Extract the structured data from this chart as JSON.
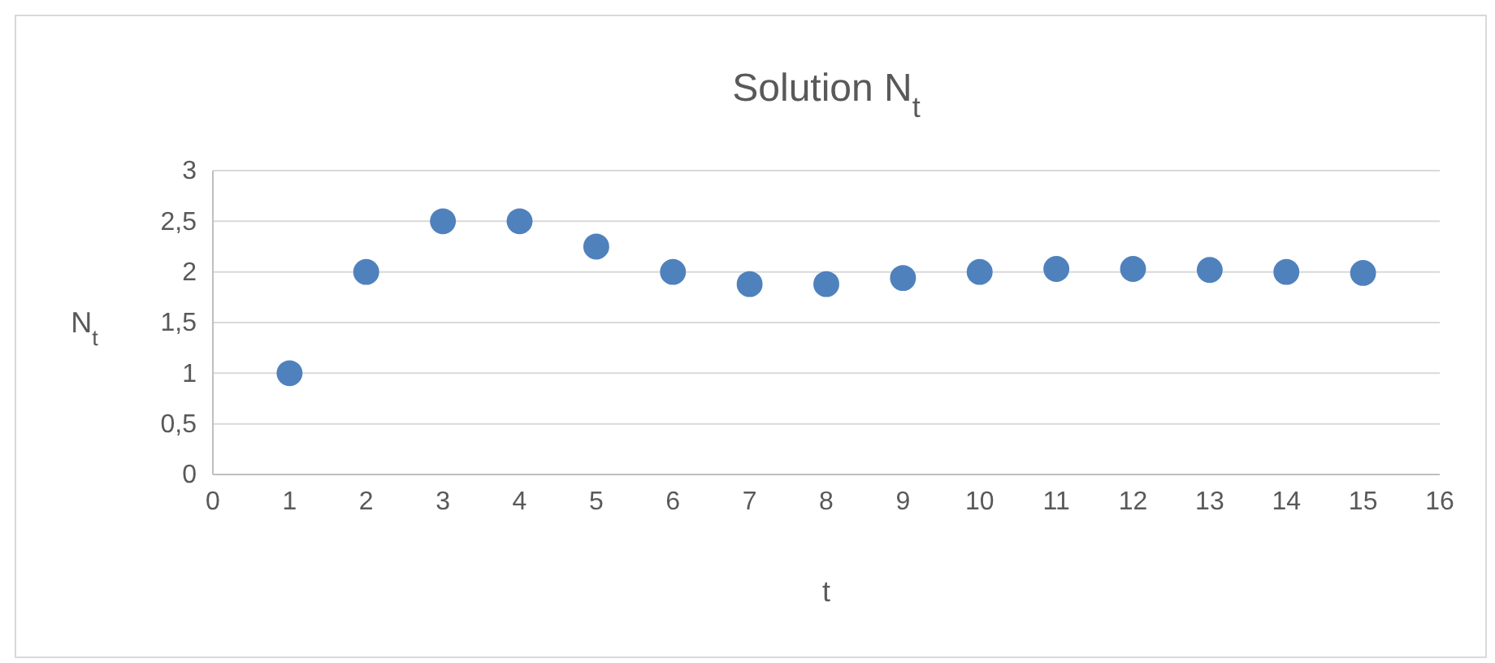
{
  "chart_data": {
    "type": "scatter",
    "title": "Solution N$_{t}$",
    "xlabel": "t",
    "ylabel": "N$_{t}$",
    "x": [
      1,
      2,
      3,
      4,
      5,
      6,
      7,
      8,
      9,
      10,
      11,
      12,
      13,
      14,
      15
    ],
    "series": [
      {
        "color": "#4f81bd",
        "values": [
          1,
          2,
          2.5,
          2.5,
          2.25,
          2,
          1.88,
          1.88,
          1.94,
          2,
          2.03,
          2.03,
          2.02,
          2,
          1.99
        ]
      }
    ],
    "xlim": [
      0,
      16
    ],
    "xticks": [
      0,
      1,
      2,
      3,
      4,
      5,
      6,
      7,
      8,
      9,
      10,
      11,
      12,
      13,
      14,
      15,
      16
    ],
    "ylim": [
      0,
      3
    ],
    "yticks": [
      0,
      {
        "value": 0.5,
        "label": "0,5"
      },
      1,
      {
        "value": 1.5,
        "label": "1,5"
      },
      2,
      {
        "value": 2.5,
        "label": "2,5"
      },
      3
    ],
    "grid": "y",
    "marker": "circle"
  }
}
